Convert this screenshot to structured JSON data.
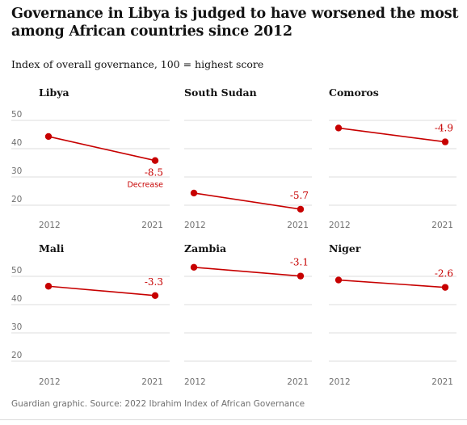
{
  "header": {
    "title": "Governance in Libya is judged to have worsened the most among African countries since 2012",
    "subtitle": "Index of overall governance, 100 = highest score"
  },
  "footer": {
    "source": "Guardian graphic. Source: 2022 Ibrahim Index of African Governance"
  },
  "chart_data": {
    "type": "line",
    "layout": "small-multiples",
    "x": [
      "2012",
      "2021"
    ],
    "ylim": [
      15,
      55
    ],
    "yticks": [
      20,
      30,
      40,
      50
    ],
    "y_tick_labels": [
      "20",
      "30",
      "40",
      "50"
    ],
    "grid": true,
    "color": "#c70000",
    "annotation": "Decrease",
    "panels": [
      {
        "title": "Libya",
        "values": [
          44.3,
          35.8
        ],
        "change_label": "-8.5"
      },
      {
        "title": "South Sudan",
        "values": [
          24.3,
          18.6
        ],
        "change_label": "-5.7"
      },
      {
        "title": "Comoros",
        "values": [
          47.3,
          42.4
        ],
        "change_label": "-4.9"
      },
      {
        "title": "Mali",
        "values": [
          46.5,
          43.2
        ],
        "change_label": "-3.3"
      },
      {
        "title": "Zambia",
        "values": [
          53.2,
          50.1
        ],
        "change_label": "-3.1"
      },
      {
        "title": "Niger",
        "values": [
          48.7,
          46.1
        ],
        "change_label": "-2.6"
      }
    ]
  }
}
